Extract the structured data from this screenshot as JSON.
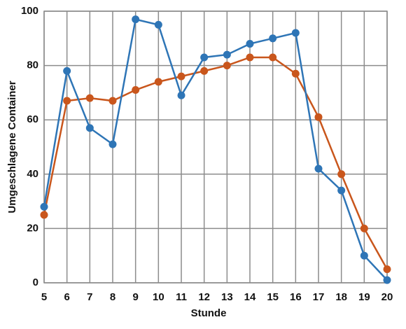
{
  "chart_data": {
    "type": "line",
    "x_label": "Stunde",
    "y_label": "Umgeschlagene Container",
    "x": [
      5,
      6,
      7,
      8,
      9,
      10,
      11,
      12,
      13,
      14,
      15,
      16,
      17,
      18,
      19,
      20
    ],
    "series": [
      {
        "color": "#2e75b6",
        "values": [
          28,
          78,
          57,
          51,
          97,
          95,
          69,
          83,
          84,
          88,
          90,
          92,
          42,
          34,
          10,
          1
        ]
      },
      {
        "color": "#c9561c",
        "values": [
          25,
          67,
          68,
          67,
          71,
          74,
          76,
          78,
          80,
          83,
          83,
          77,
          61,
          40,
          20,
          5
        ]
      }
    ],
    "xlim": [
      5,
      20
    ],
    "xticks": [
      5,
      6,
      7,
      8,
      9,
      10,
      11,
      12,
      13,
      14,
      15,
      16,
      17,
      18,
      19,
      20
    ],
    "ylim": [
      0,
      100
    ],
    "yticks": [
      0,
      20,
      40,
      60,
      80,
      100
    ],
    "grid": true
  }
}
